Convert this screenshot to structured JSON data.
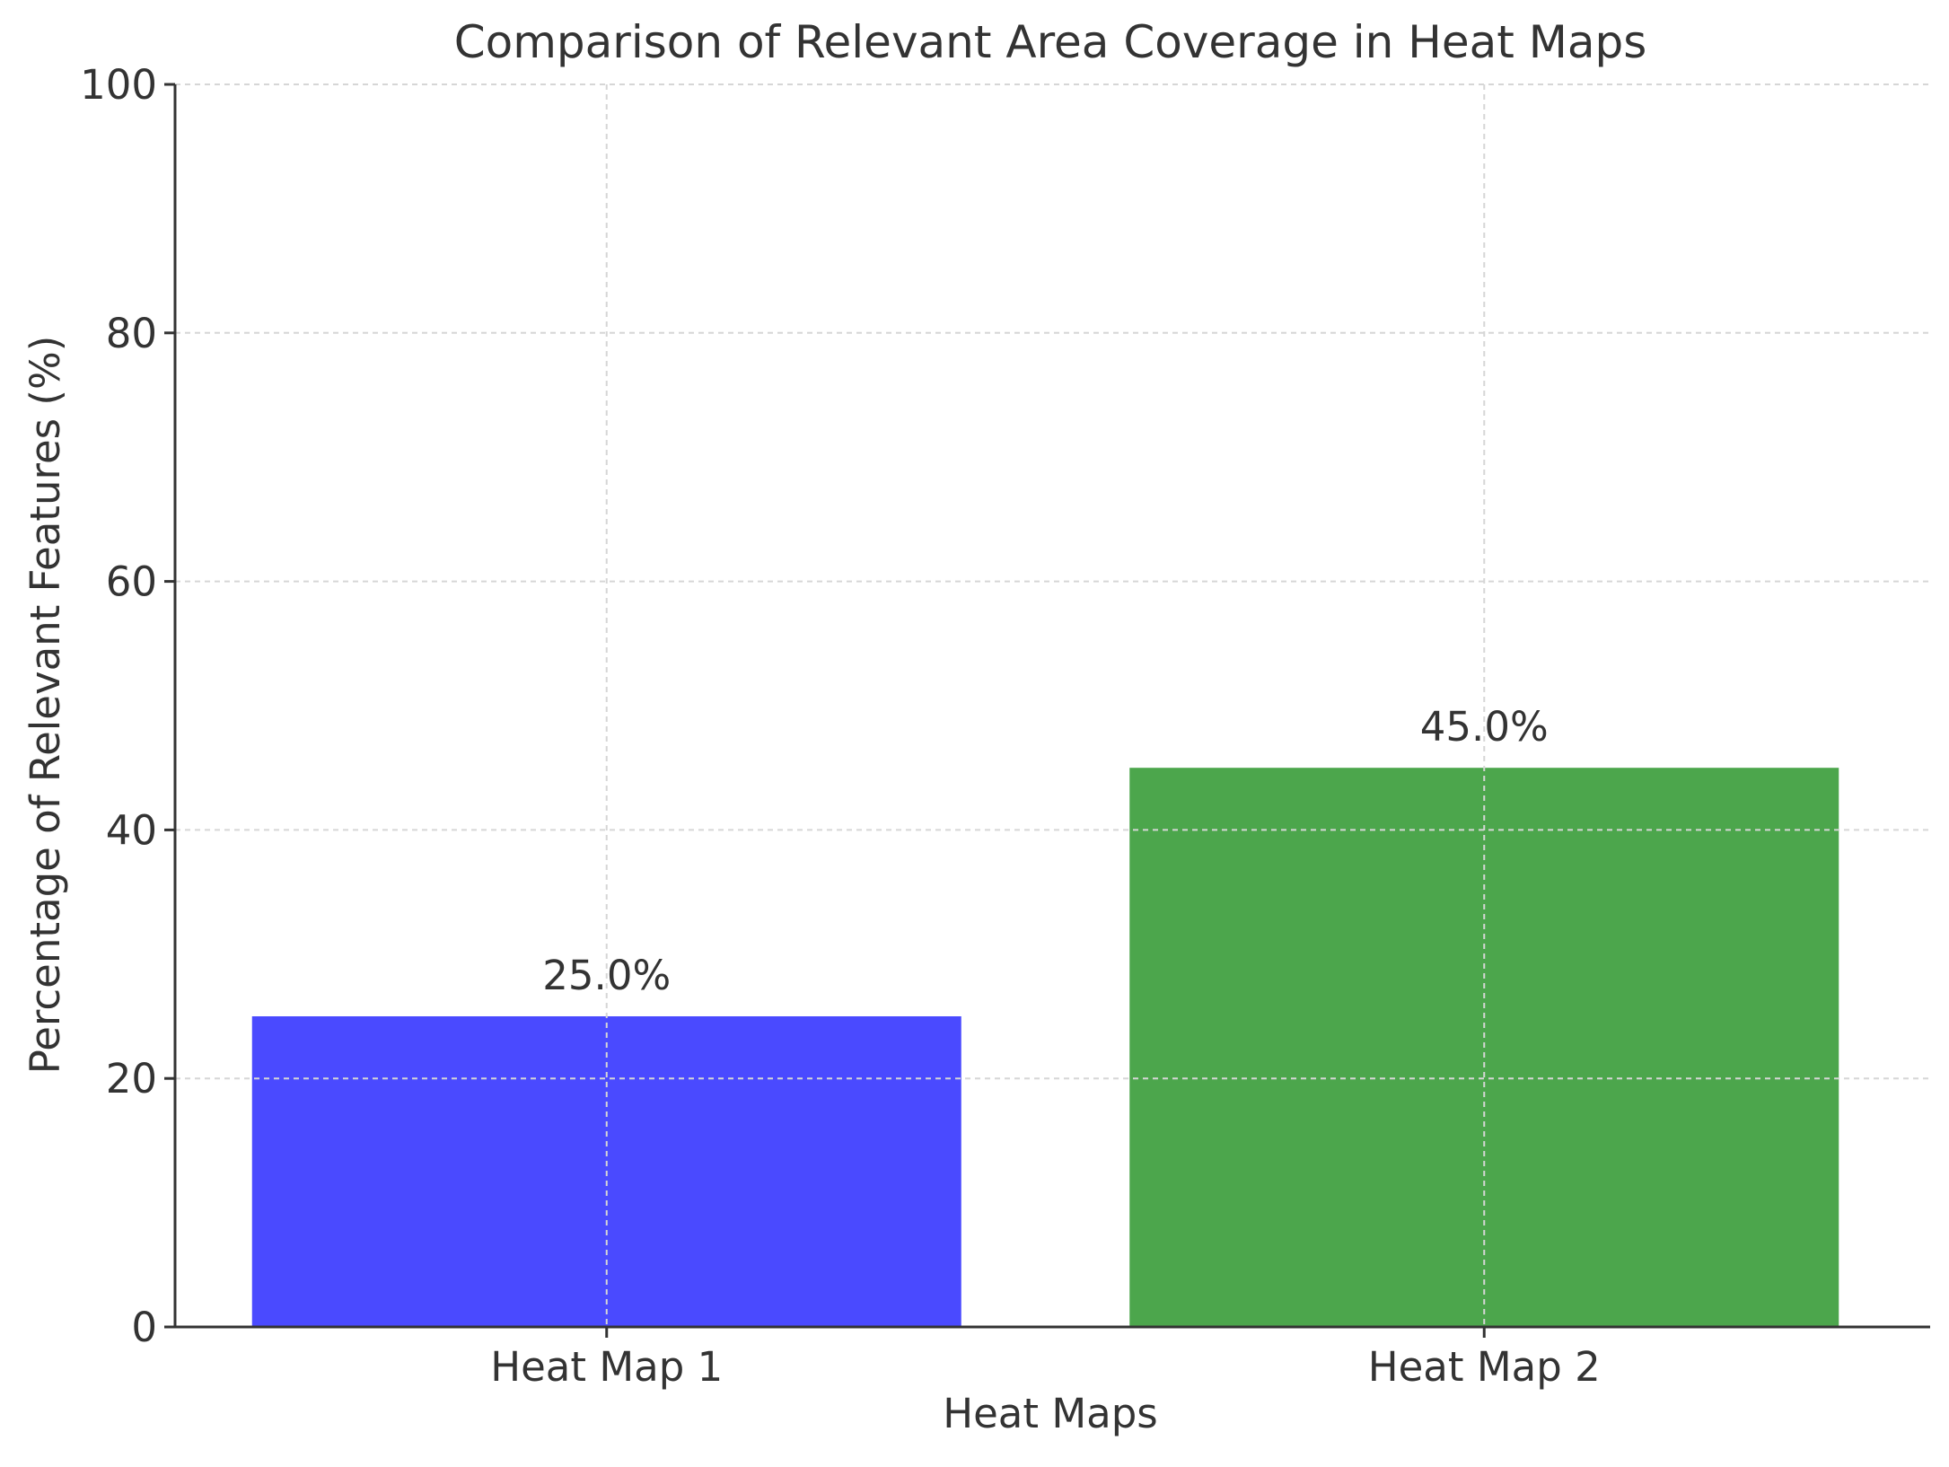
{
  "chart_data": {
    "type": "bar",
    "title": "Comparison of Relevant Area Coverage in Heat Maps",
    "xlabel": "Heat Maps",
    "ylabel": "Percentage of Relevant Features (%)",
    "categories": [
      "Heat Map 1",
      "Heat Map 2"
    ],
    "values": [
      25.0,
      45.0
    ],
    "data_labels": [
      "25.0%",
      "45.0%"
    ],
    "colors": [
      "#4a4aff",
      "#4ca64c"
    ],
    "ylim": [
      0,
      100
    ],
    "yticks": [
      0,
      20,
      40,
      60,
      80,
      100
    ],
    "ytick_labels": [
      "0",
      "20",
      "40",
      "60",
      "80",
      "100"
    ],
    "grid": true,
    "legend": "none"
  }
}
